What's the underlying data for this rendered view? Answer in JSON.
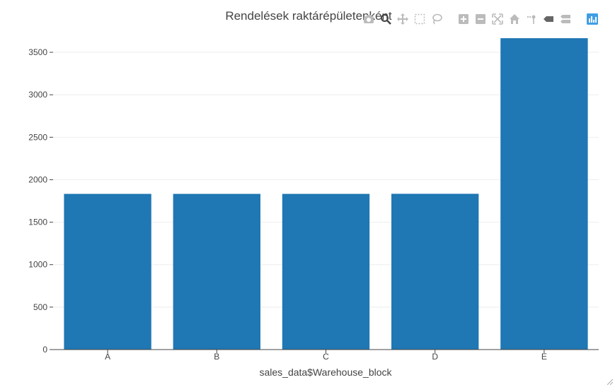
{
  "chart_data": {
    "type": "bar",
    "title": "Rendelések raktárépületenként",
    "xlabel": "sales_data$Warehouse_block",
    "ylabel": "",
    "categories": [
      "A",
      "B",
      "C",
      "D",
      "E"
    ],
    "values": [
      1833,
      1833,
      1833,
      1834,
      3666
    ],
    "ylim": [
      0,
      3700
    ],
    "yticks": [
      0,
      500,
      1000,
      1500,
      2000,
      2500,
      3000,
      3500
    ],
    "grid": true,
    "bar_color": "#1f77b4"
  },
  "modebar": {
    "icons": [
      "camera-icon",
      "zoom-icon",
      "pan-icon",
      "box-select-icon",
      "lasso-select-icon",
      "zoom-in-icon",
      "zoom-out-icon",
      "autoscale-icon",
      "reset-axes-icon",
      "spike-lines-icon",
      "hover-closest-icon",
      "hover-compare-icon",
      "plotly-logo-icon"
    ],
    "icon_color": "#bbbbbb",
    "active_color": "#444444",
    "logo_color": "#3f9ee5"
  }
}
